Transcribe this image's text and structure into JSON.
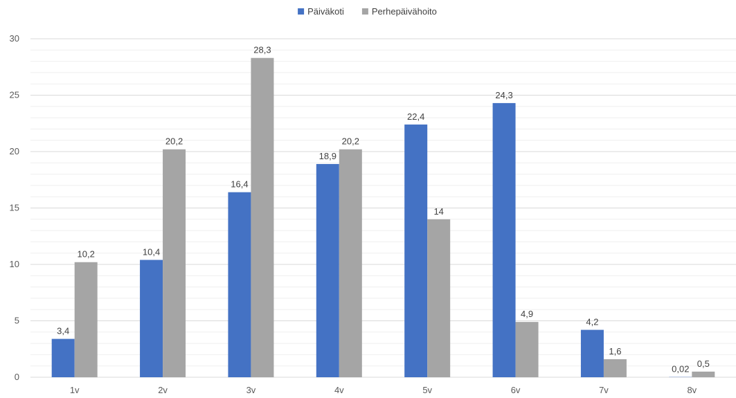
{
  "chart_data": {
    "type": "bar",
    "categories": [
      "1v",
      "2v",
      "3v",
      "4v",
      "5v",
      "6v",
      "7v",
      "8v"
    ],
    "series": [
      {
        "name": "Päiväkoti",
        "color": "#4472C4",
        "values": [
          3.4,
          10.4,
          16.4,
          18.9,
          22.4,
          24.3,
          4.2,
          0.02
        ],
        "labels": [
          "3,4",
          "10,4",
          "16,4",
          "18,9",
          "22,4",
          "24,3",
          "4,2",
          "0,02"
        ]
      },
      {
        "name": "Perhepäivähoito",
        "color": "#A5A5A5",
        "values": [
          10.2,
          20.2,
          28.3,
          20.2,
          14,
          4.9,
          1.6,
          0.5
        ],
        "labels": [
          "10,2",
          "20,2",
          "28,3",
          "20,2",
          "14",
          "4,9",
          "1,6",
          "0,5"
        ]
      }
    ],
    "ylim": [
      0,
      30
    ],
    "yticks": [
      0,
      5,
      10,
      15,
      20,
      25,
      30
    ],
    "grid": true,
    "legend_position": "top-center"
  }
}
